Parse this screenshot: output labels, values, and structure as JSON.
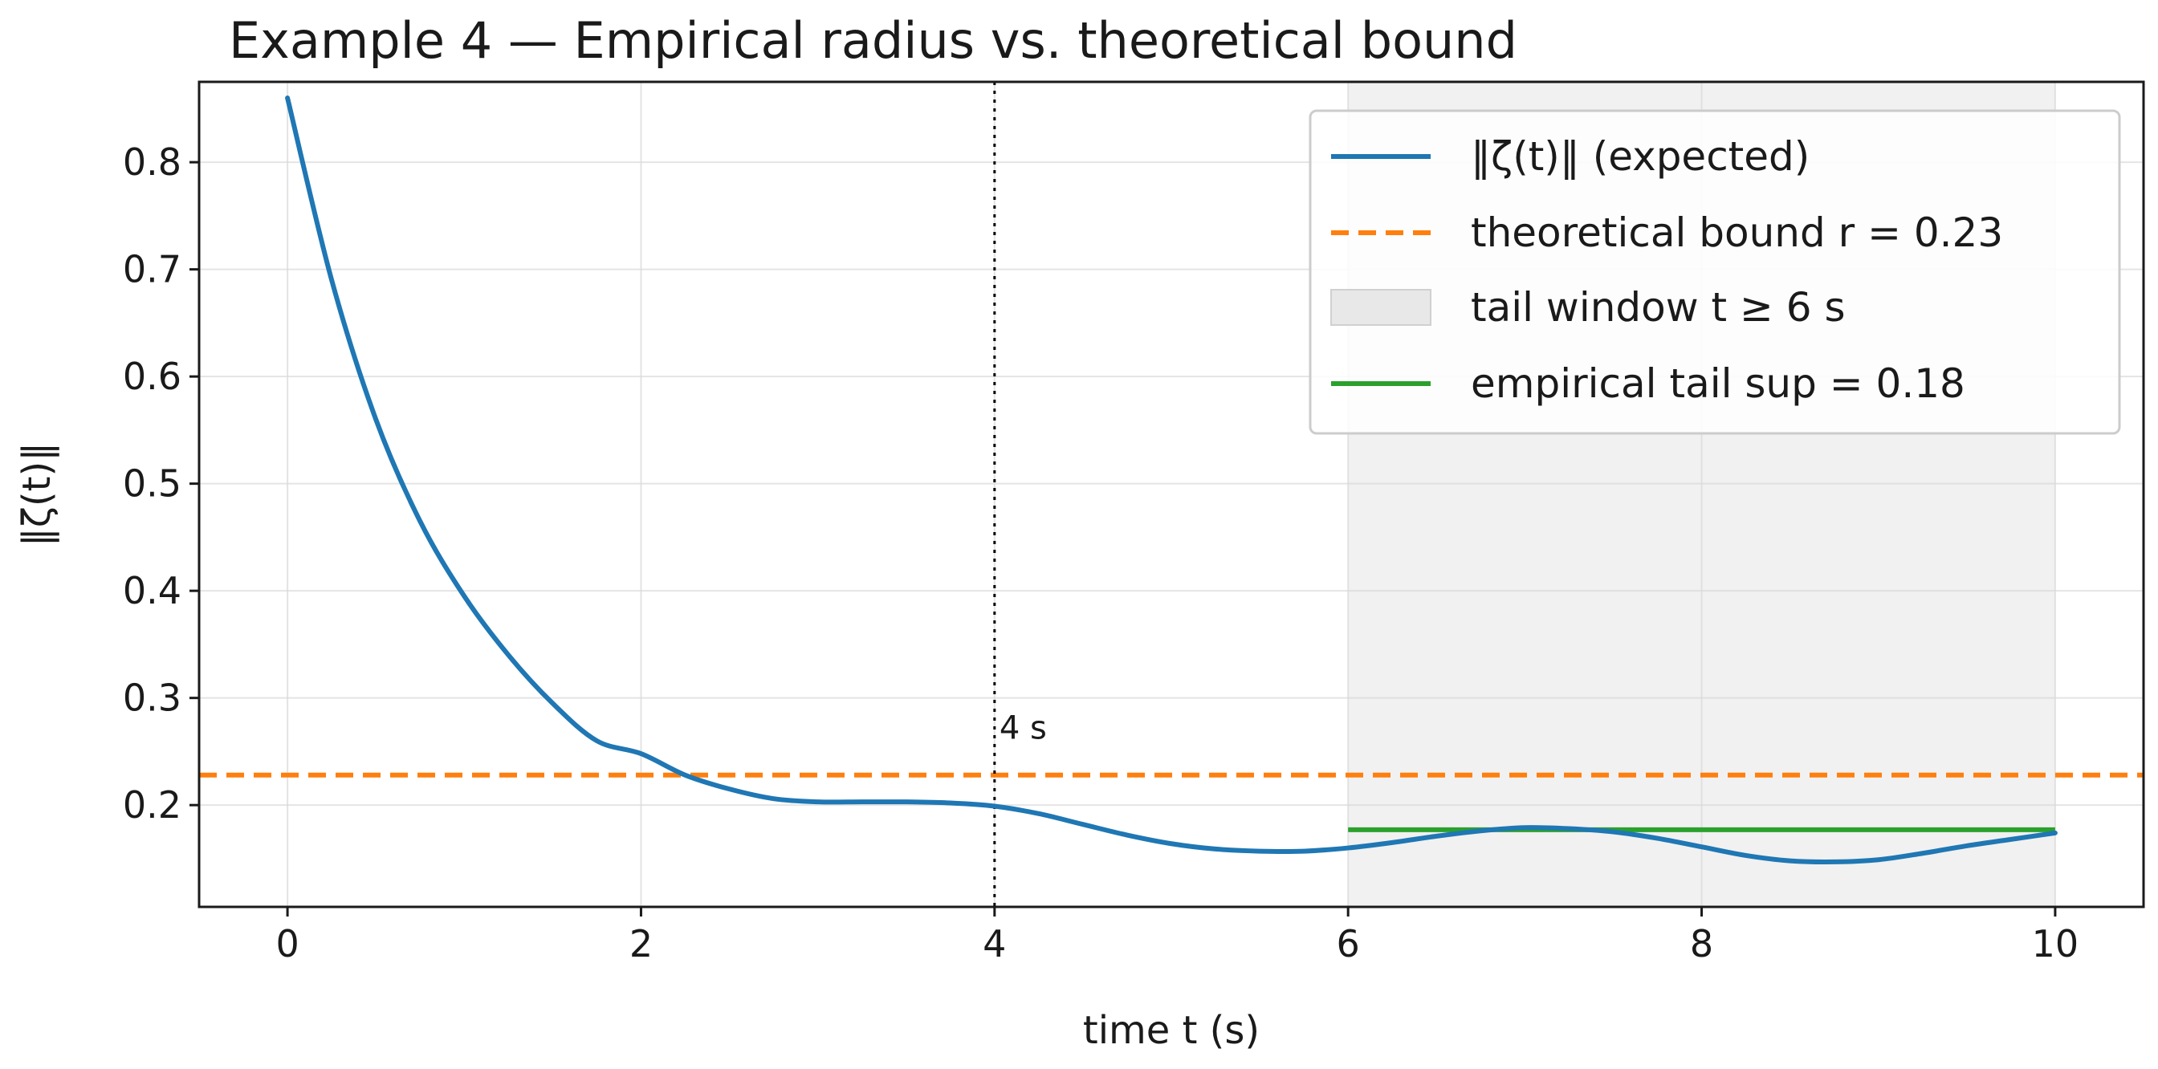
{
  "chart_data": {
    "type": "line",
    "title": "Example 4 — Empirical radius vs. theoretical bound",
    "xlabel": "time t (s)",
    "ylabel": "‖ζ(t)‖",
    "xlim": [
      -0.5,
      10.5
    ],
    "ylim": [
      0.105,
      0.875
    ],
    "xticks": [
      0,
      2,
      4,
      6,
      8,
      10
    ],
    "yticks": [
      0.2,
      0.3,
      0.4,
      0.5,
      0.6,
      0.7,
      0.8
    ],
    "xtick_labels": [
      "0",
      "2",
      "4",
      "6",
      "8",
      "10"
    ],
    "ytick_labels": [
      "0.2",
      "0.3",
      "0.4",
      "0.5",
      "0.6",
      "0.7",
      "0.8"
    ],
    "grid": true,
    "legend_position": "top-right",
    "colors": {
      "curve": "#1f77b4",
      "bound": "#ff7f0e",
      "tail_sup": "#2ca02c",
      "tail_window": "#e8e8e8",
      "vline": "#000000"
    },
    "series": [
      {
        "name": "‖ζ(t)‖ (expected)",
        "x": [
          0,
          0.25,
          0.5,
          0.75,
          1.0,
          1.25,
          1.5,
          1.75,
          2.0,
          2.25,
          2.5,
          2.75,
          3.0,
          3.25,
          3.5,
          3.75,
          4.0,
          4.25,
          4.5,
          4.75,
          5.0,
          5.25,
          5.5,
          5.75,
          6.0,
          6.25,
          6.5,
          6.75,
          7.0,
          7.25,
          7.5,
          7.75,
          8.0,
          8.25,
          8.5,
          8.75,
          9.0,
          9.25,
          9.5,
          9.75,
          10.0
        ],
        "values": [
          0.86,
          0.69,
          0.56,
          0.465,
          0.395,
          0.34,
          0.295,
          0.26,
          0.248,
          0.228,
          0.215,
          0.206,
          0.203,
          0.203,
          0.203,
          0.202,
          0.199,
          0.192,
          0.182,
          0.172,
          0.164,
          0.159,
          0.157,
          0.157,
          0.16,
          0.165,
          0.171,
          0.176,
          0.179,
          0.178,
          0.175,
          0.169,
          0.161,
          0.153,
          0.148,
          0.147,
          0.149,
          0.155,
          0.162,
          0.168,
          0.174
        ]
      }
    ],
    "bound": {
      "label": "theoretical bound r = 0.23",
      "value": 0.228
    },
    "tail_window": {
      "label": "tail window t ≥ 6 s",
      "start": 6,
      "end": 10
    },
    "tail_sup": {
      "label": "empirical tail sup = 0.18",
      "value": 0.177,
      "x_start": 6,
      "x_end": 10
    },
    "vline": {
      "x": 4,
      "label": "4 s"
    }
  }
}
